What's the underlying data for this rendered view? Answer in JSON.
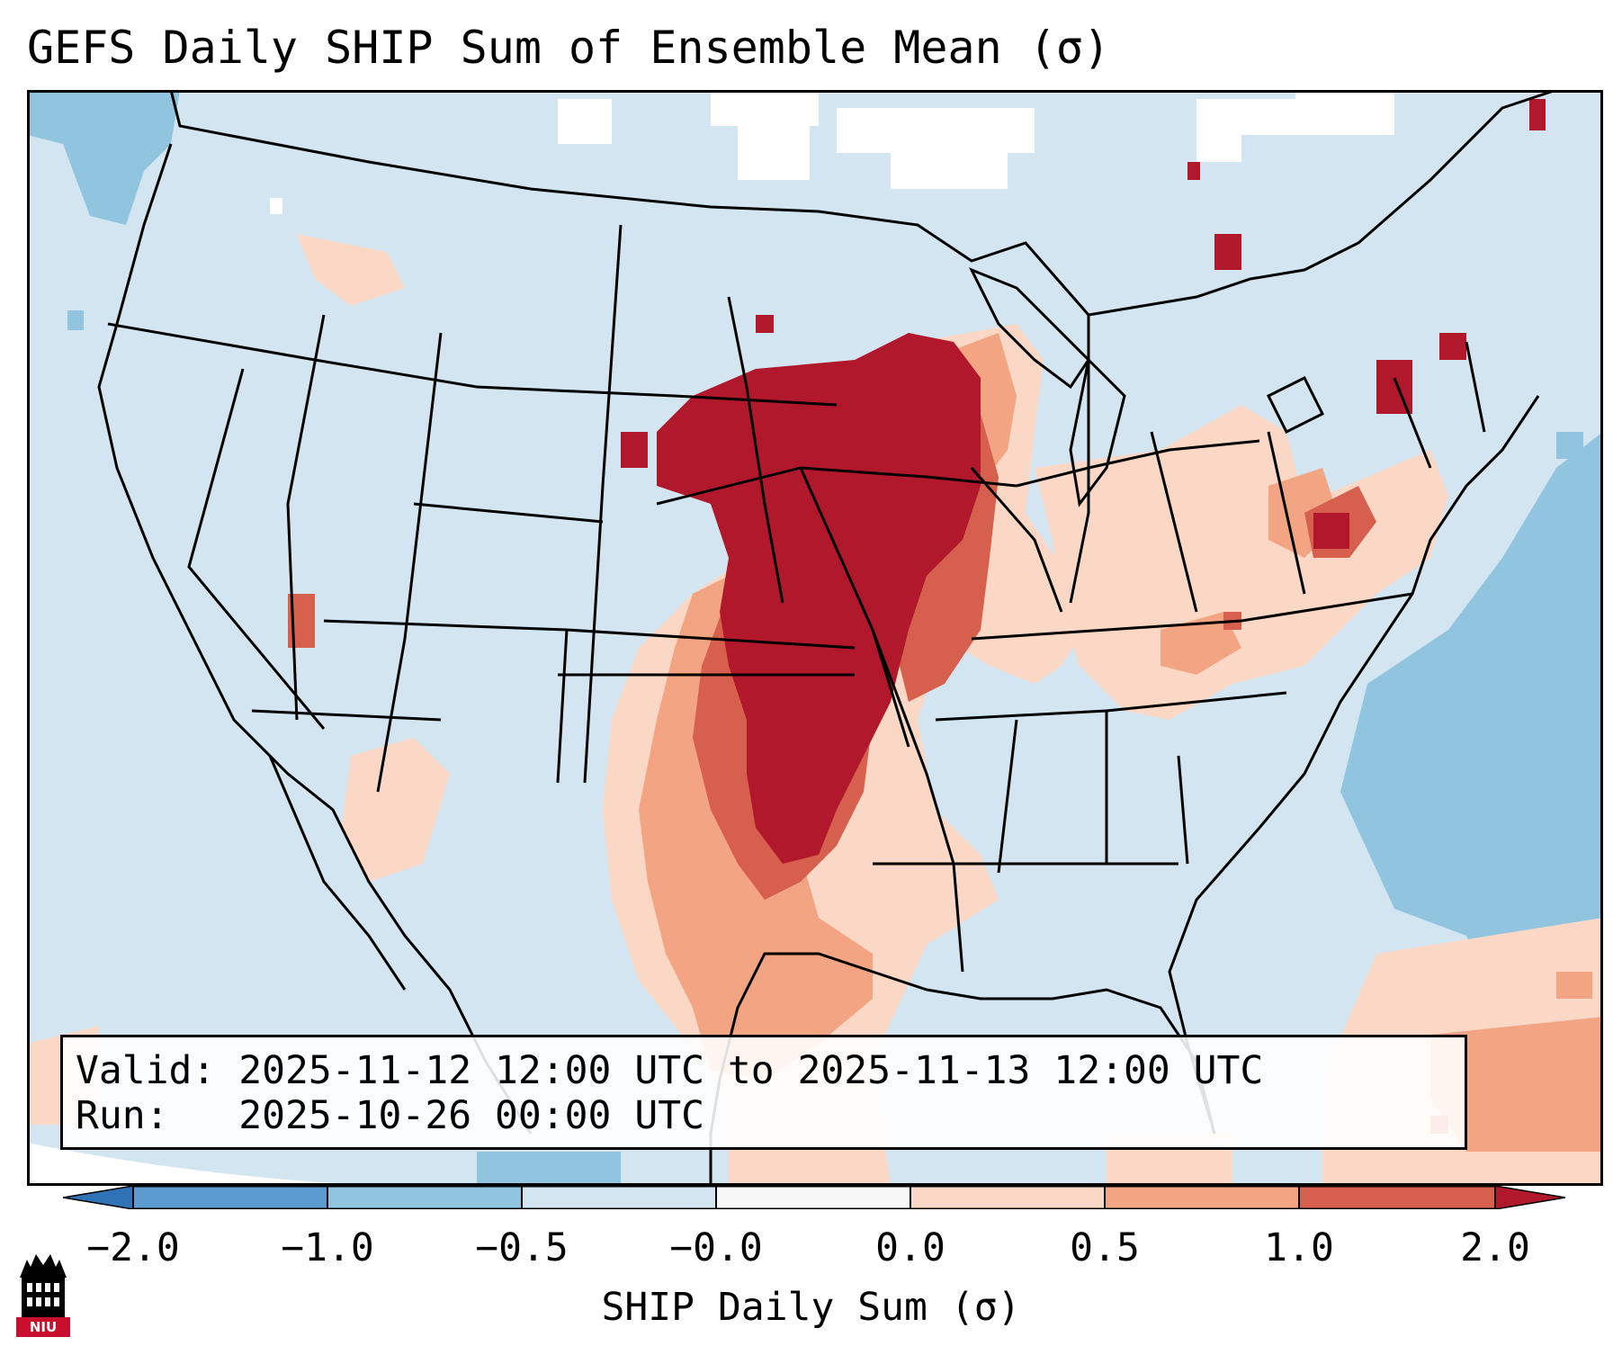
{
  "title": "GEFS Daily SHIP Sum of Ensemble Mean (σ)",
  "info": {
    "valid_line": "Valid: 2025-11-12 12:00 UTC to 2025-11-13 12:00 UTC",
    "run_line": "Run:   2025-10-26 00:00 UTC"
  },
  "colorbar": {
    "label": "SHIP Daily Sum (σ)",
    "ticks": [
      "−2.0",
      "−1.0",
      "−0.5",
      "−0.0",
      "0.0",
      "0.5",
      "1.0",
      "2.0"
    ],
    "colors": {
      "below": "#2f72b5",
      "b_-2_-1": "#5b9bcf",
      "b_-1_-05": "#91c4de",
      "b_-05_0": "#d3e5f0",
      "b_0_0": "#f7f7f7",
      "b_0_05": "#fbd8c5",
      "b_05_1": "#f3a483",
      "b_1_2": "#d6604d",
      "above": "#b2182b"
    }
  },
  "map": {
    "background_color": "#d3e5f0",
    "ocean_cool_color": "#91c4de",
    "outline_color": "#000000"
  },
  "logo": {
    "text": "NIU",
    "icon": "niu-building-icon"
  }
}
